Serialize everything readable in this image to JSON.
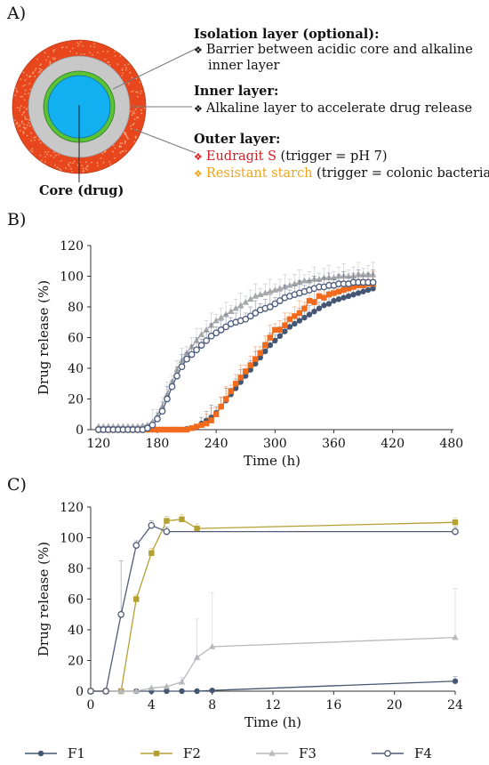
{
  "panels": {
    "a": "A)",
    "b": "B)",
    "c": "C)"
  },
  "diagram": {
    "colors": {
      "outer": "#e8461c",
      "inner": "#c8c8c8",
      "isolation": "#5bc236",
      "core": "#12b0f0",
      "line": "#777777"
    },
    "core_label": "Core (drug)",
    "isolation": {
      "title": "Isolation layer (optional):",
      "lines": [
        "Barrier between acidic core and alkaline",
        "inner layer"
      ]
    },
    "inner": {
      "title": "Inner layer:",
      "lines": [
        "Alkaline layer to accelerate drug release"
      ]
    },
    "outer": {
      "title": "Outer layer:",
      "eudragit": {
        "name": "Eudragit S",
        "rest": " (trigger = pH 7)",
        "color": "#d01f25"
      },
      "starch": {
        "name": "Resistant starch",
        "rest": " (trigger = colonic bacteria)",
        "color": "#f0a41b"
      }
    },
    "bullet_glyph": "❖"
  },
  "chart_data": [
    {
      "type": "line",
      "xlabel": "Time (h)",
      "ylabel": "Drug release (%)",
      "xlim": [
        112,
        482
      ],
      "ylim": [
        0,
        120
      ],
      "xticks": [
        120,
        180,
        240,
        300,
        360,
        420,
        480
      ],
      "yticks": [
        0,
        20,
        40,
        60,
        80,
        100,
        120
      ],
      "grid": false,
      "series": [
        {
          "key": "F1",
          "color": "#445672",
          "marker": "circle",
          "start": 120,
          "step": 5,
          "values": [
            0,
            0,
            0,
            0,
            0,
            0,
            0,
            0,
            0,
            0,
            0,
            0,
            0,
            0,
            0,
            0,
            0,
            0,
            0.5,
            1,
            2,
            4,
            6,
            8,
            11,
            15,
            19,
            23,
            27,
            31,
            35,
            39,
            43,
            47,
            51,
            55,
            58,
            61,
            64,
            67,
            69,
            71,
            73,
            75,
            77,
            79,
            81,
            82,
            84,
            85,
            86,
            87,
            88,
            89,
            90,
            91,
            92
          ]
        },
        {
          "key": "F2",
          "color": "#f26b1d",
          "marker": "square",
          "start": 120,
          "step": 5,
          "values": [
            0,
            0,
            0,
            0,
            0,
            0,
            0,
            0,
            0,
            0,
            0,
            0,
            0,
            0,
            0,
            0,
            0,
            0,
            0,
            1,
            2,
            3,
            4,
            6,
            10,
            15,
            20,
            25,
            30,
            34,
            38,
            42,
            46,
            50,
            55,
            60,
            65,
            65,
            68,
            72,
            74,
            76,
            79,
            84,
            83,
            87,
            86,
            88,
            89,
            90,
            91,
            92,
            93,
            94,
            94,
            95,
            95
          ]
        },
        {
          "key": "F3",
          "color": "#a7a9ac",
          "marker": "triangle",
          "start": 120,
          "step": 5,
          "values": [
            2,
            2,
            2,
            2,
            2,
            2,
            2,
            2,
            2,
            2.5,
            3,
            5,
            9,
            15,
            23,
            31,
            39,
            45,
            50,
            54,
            58,
            62,
            65,
            68,
            71,
            73,
            75,
            77,
            79,
            81,
            83,
            85,
            87,
            88,
            89,
            90,
            91,
            92,
            93,
            94,
            95,
            96,
            97,
            97,
            98,
            98,
            99,
            99,
            99,
            100,
            100,
            100,
            100,
            101,
            101,
            101,
            101
          ]
        },
        {
          "key": "F4",
          "color": "#4a5a7a",
          "marker": "open-circle",
          "start": 120,
          "step": 5,
          "values": [
            0,
            0,
            0,
            0,
            0,
            0,
            0,
            0,
            0,
            0,
            1,
            3,
            7,
            12,
            20,
            28,
            35,
            41,
            46,
            49,
            52,
            55,
            58,
            61,
            63,
            65,
            67,
            69,
            70,
            71,
            72,
            74,
            76,
            78,
            79,
            80,
            82,
            84,
            86,
            87,
            88,
            89,
            90,
            91,
            92,
            93,
            93,
            94,
            94,
            95,
            95,
            95,
            96,
            96,
            96,
            96,
            96
          ]
        }
      ]
    },
    {
      "type": "line",
      "xlabel": "Time (h)",
      "ylabel": "Drug release (%)",
      "xlim": [
        0,
        24
      ],
      "ylim": [
        0,
        120
      ],
      "xticks": [
        0,
        4,
        8,
        12,
        16,
        20,
        24
      ],
      "yticks": [
        0,
        20,
        40,
        60,
        80,
        100,
        120
      ],
      "grid": false,
      "series": [
        {
          "key": "F1",
          "color": "#445672",
          "marker": "circle",
          "x": [
            0,
            1,
            2,
            3,
            4,
            5,
            6,
            7,
            8,
            24
          ],
          "values": [
            0,
            0,
            0,
            0,
            0,
            0,
            0,
            0,
            0.5,
            6.5
          ]
        },
        {
          "key": "F2",
          "color": "#b5a032",
          "marker": "square",
          "x": [
            0,
            1,
            2,
            3,
            4,
            5,
            6,
            7,
            24
          ],
          "values": [
            0,
            0,
            0,
            60,
            90,
            111,
            112,
            106,
            110
          ]
        },
        {
          "key": "F3",
          "color": "#b7b9bc",
          "marker": "triangle",
          "x": [
            0,
            1,
            2,
            3,
            4,
            5,
            6,
            7,
            8,
            24
          ],
          "values": [
            0,
            0,
            0,
            0,
            2,
            3,
            6,
            22,
            29,
            35
          ]
        },
        {
          "key": "F4",
          "color": "#525c78",
          "marker": "open-circle",
          "x": [
            0,
            1,
            2,
            3,
            4,
            5,
            24
          ],
          "values": [
            0,
            0,
            50,
            95,
            108,
            104,
            104
          ]
        }
      ]
    }
  ],
  "legend": [
    {
      "name": "F1",
      "color": "#445672",
      "marker": "circle"
    },
    {
      "name": "F2",
      "color": "#b5a032",
      "marker": "square"
    },
    {
      "name": "F3",
      "color": "#b7b9bc",
      "marker": "triangle"
    },
    {
      "name": "F4",
      "color": "#525c78",
      "marker": "open-circle"
    }
  ]
}
